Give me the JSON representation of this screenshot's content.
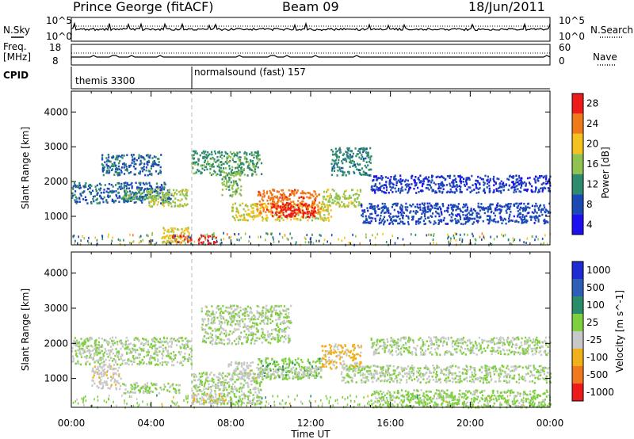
{
  "header": {
    "station": "Prince George (fitACF)",
    "beam": "Beam 09",
    "date": "18/Jun/2011"
  },
  "panel_labels": {
    "nsky": "N.Sky",
    "nsearch": "N.Search",
    "freq": "Freq.",
    "mhz": "[MHz]",
    "nave": "Nave",
    "cpid": "CPID",
    "nsky_top": "10^5",
    "nsky_bot": "10^0",
    "nsearch_top": "10^5",
    "nsearch_bot": "10^0",
    "freq_top": "18",
    "freq_bot": "8",
    "nave_top": "60",
    "nave_bot": "0"
  },
  "cpid_segments": [
    {
      "label": "themis 3300",
      "start_hour": 0
    },
    {
      "label": "normalsound (fast) 157",
      "start_hour": 6
    }
  ],
  "xaxis": {
    "label": "Time UT",
    "range_hours": [
      0,
      24
    ],
    "ticks": [
      "00:00",
      "04:00",
      "08:00",
      "12:00",
      "16:00",
      "20:00",
      "00:00"
    ]
  },
  "yaxis": {
    "label": "Slant Range [km]",
    "range": [
      180,
      4600
    ],
    "ticks": [
      "1000",
      "2000",
      "3000",
      "4000"
    ]
  },
  "power_colorbar": {
    "label": "Power [dB]",
    "ticks": [
      "4",
      "8",
      "12",
      "16",
      "20",
      "24",
      "28"
    ],
    "colors": [
      "#1e0ff0",
      "#1c4ab4",
      "#2e8b6d",
      "#8fc24e",
      "#f4c21f",
      "#f07a1a",
      "#ee1b1b"
    ]
  },
  "velocity_colorbar": {
    "label": "Velocity [m s^-1]",
    "ticks": [
      "1000",
      "500",
      "100",
      "25",
      "-25",
      "-100",
      "-500",
      "-1000"
    ],
    "colors": [
      "#1e2ad2",
      "#2e5fb8",
      "#2a8c68",
      "#7fd03f",
      "#c8c8c8",
      "#f0b01a",
      "#f0781e",
      "#ee1b1b"
    ]
  },
  "chart_data": [
    {
      "type": "heatmap",
      "title": "Power [dB]",
      "xlabel": "Time UT",
      "ylabel": "Slant Range [km]",
      "xlim_hours": [
        0,
        24
      ],
      "ylim": [
        180,
        4600
      ],
      "value_range": [
        0,
        30
      ],
      "regions": [
        {
          "t": [
            0.0,
            5.0
          ],
          "range": [
            1400,
            2000
          ],
          "value": 8
        },
        {
          "t": [
            1.5,
            4.5
          ],
          "range": [
            2200,
            2800
          ],
          "value": 8
        },
        {
          "t": [
            2.5,
            4.2
          ],
          "range": [
            1500,
            1800
          ],
          "value": 12
        },
        {
          "t": [
            3.8,
            5.8
          ],
          "range": [
            1300,
            1800
          ],
          "value": 16
        },
        {
          "t": [
            4.5,
            5.9
          ],
          "range": [
            250,
            700
          ],
          "value": 18
        },
        {
          "t": [
            5.0,
            6.0
          ],
          "range": [
            250,
            500
          ],
          "value": 26
        },
        {
          "t": [
            6.3,
            7.3
          ],
          "range": [
            250,
            500
          ],
          "value": 29
        },
        {
          "t": [
            6.0,
            9.5
          ],
          "range": [
            2200,
            2900
          ],
          "value": 12
        },
        {
          "t": [
            7.5,
            8.5
          ],
          "range": [
            1600,
            2300
          ],
          "value": 14
        },
        {
          "t": [
            8.0,
            13.0
          ],
          "range": [
            900,
            1400
          ],
          "value": 18
        },
        {
          "t": [
            9.3,
            12.5
          ],
          "range": [
            1100,
            1800
          ],
          "value": 24
        },
        {
          "t": [
            10.0,
            12.2
          ],
          "range": [
            1000,
            1400
          ],
          "value": 28
        },
        {
          "t": [
            12.5,
            14.5
          ],
          "range": [
            1300,
            1800
          ],
          "value": 16
        },
        {
          "t": [
            13.0,
            15.0
          ],
          "range": [
            2200,
            3000
          ],
          "value": 10
        },
        {
          "t": [
            14.5,
            24.0
          ],
          "range": [
            800,
            1400
          ],
          "value": 6
        },
        {
          "t": [
            15.0,
            24.0
          ],
          "range": [
            1700,
            2200
          ],
          "value": 5
        }
      ]
    },
    {
      "type": "heatmap",
      "title": "Velocity [m s^-1]",
      "xlabel": "Time UT",
      "ylabel": "Slant Range [km]",
      "xlim_hours": [
        0,
        24
      ],
      "ylim": [
        180,
        4600
      ],
      "value_range": [
        -1000,
        1000
      ],
      "regions": [
        {
          "t": [
            0.0,
            6.0
          ],
          "range": [
            1400,
            2200
          ],
          "value": 0
        },
        {
          "t": [
            1.0,
            2.5
          ],
          "range": [
            700,
            1400
          ],
          "value": -150
        },
        {
          "t": [
            2.5,
            5.5
          ],
          "range": [
            600,
            900
          ],
          "value": 0
        },
        {
          "t": [
            6.0,
            9.5
          ],
          "range": [
            300,
            1200
          ],
          "value": 0
        },
        {
          "t": [
            6.0,
            7.8
          ],
          "range": [
            300,
            600
          ],
          "value": -200
        },
        {
          "t": [
            6.5,
            11.0
          ],
          "range": [
            2000,
            3100
          ],
          "value": 0
        },
        {
          "t": [
            7.8,
            9.3
          ],
          "range": [
            1000,
            1500
          ],
          "value": -120
        },
        {
          "t": [
            9.3,
            12.5
          ],
          "range": [
            1000,
            1600
          ],
          "value": 150
        },
        {
          "t": [
            9.3,
            12.5
          ],
          "range": [
            1050,
            1350
          ],
          "value": -100
        },
        {
          "t": [
            12.5,
            14.5
          ],
          "range": [
            1300,
            2000
          ],
          "value": -300
        },
        {
          "t": [
            13.5,
            24.0
          ],
          "range": [
            900,
            1400
          ],
          "value": 0
        },
        {
          "t": [
            15.0,
            24.0
          ],
          "range": [
            200,
            700
          ],
          "value": 80
        },
        {
          "t": [
            15.0,
            24.0
          ],
          "range": [
            1700,
            2200
          ],
          "value": 0
        }
      ]
    }
  ]
}
